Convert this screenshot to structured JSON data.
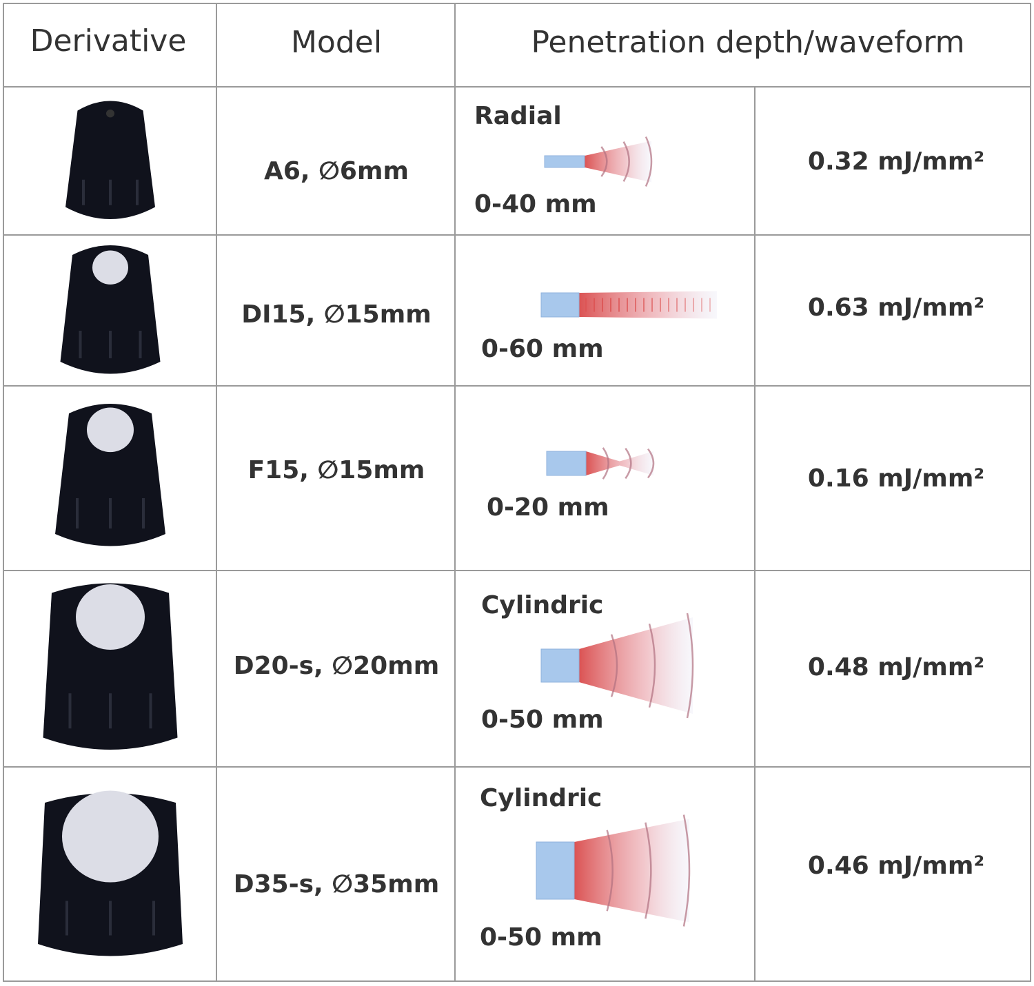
{
  "table": {
    "header": [
      "Derivative",
      "Model",
      "Penetration depth/waveform"
    ],
    "rows": [
      {
        "model": "A6, ∅6mm",
        "wave_type": "Radial",
        "depth": "0-40 mm",
        "energy": "0.32 mJ/mm²"
      },
      {
        "model": "DI15, ∅15mm",
        "depth": "0-60 mm",
        "energy": "0.63 mJ/mm²"
      },
      {
        "model": "F15, ∅15mm",
        "depth": "0-20 mm",
        "energy": "0.16 mJ/mm²"
      },
      {
        "model": "D20-s, ∅20mm",
        "wave_type": "Cylindric",
        "depth": "0-50 mm",
        "energy": "0.48 mJ/mm²"
      },
      {
        "model": "D35-s, ∅35mm",
        "wave_type": "Cylindric",
        "depth": "0-50 mm",
        "energy": "0.46 mJ/mm²"
      }
    ]
  }
}
